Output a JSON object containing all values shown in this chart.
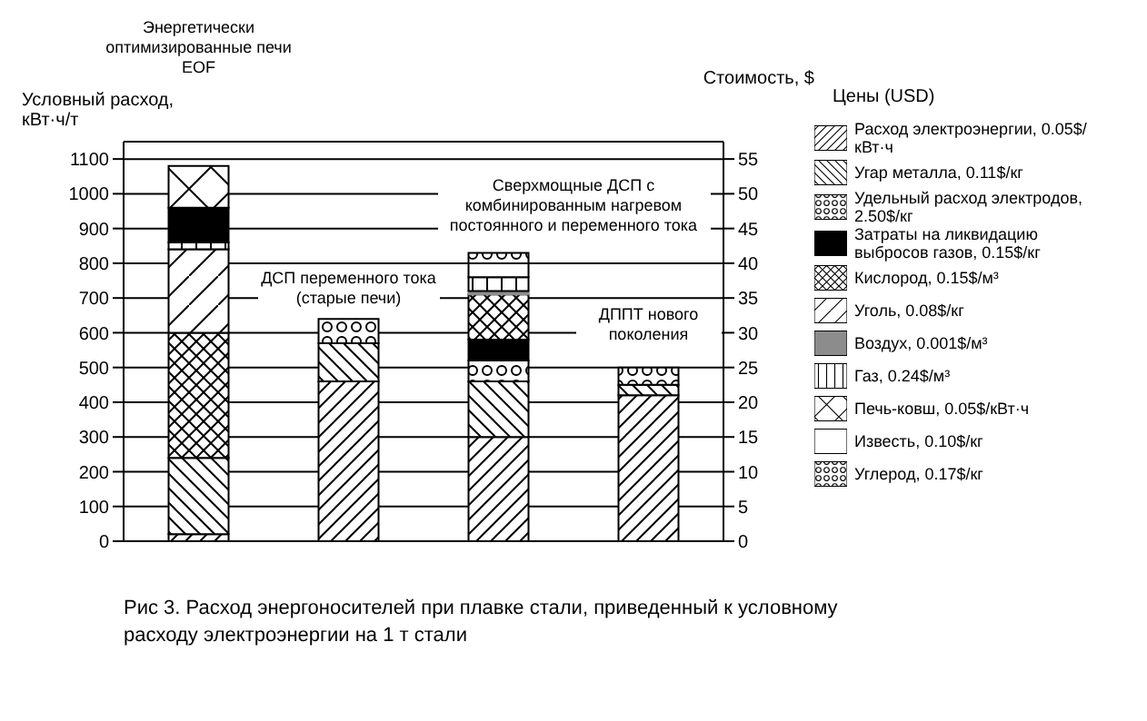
{
  "chart_data": {
    "type": "bar",
    "stacked": true,
    "ylabel": "Условный расход, кВт·ч/т",
    "y2label": "Стоимость, $",
    "categories": [
      null,
      null,
      null,
      null
    ],
    "series": [
      {
        "name": "Расход электроэнергии, 0.05$/кВт·ч",
        "color": "#000000",
        "values": [
          20,
          460,
          300,
          420
        ]
      },
      {
        "name": "Угар металла, 0.11$/кг",
        "color": "#000000",
        "values": [
          220,
          110,
          160,
          30
        ]
      },
      {
        "name": "Удельный расход электродов, 2.50$/кг",
        "color": "#000000",
        "values": [
          null,
          70,
          60,
          50
        ]
      },
      {
        "name": "Затраты на ликвидацию выбросов газов, 0.15$/кг",
        "color": "#000000",
        "values": [
          null,
          null,
          60,
          null
        ]
      },
      {
        "name": "Кислород, 0.15$/м³",
        "color": "#000000",
        "values": [
          360,
          null,
          130,
          null
        ]
      },
      {
        "name": "Уголь, 0.08$/кг",
        "color": "#000000",
        "values": [
          240,
          null,
          null,
          null
        ]
      },
      {
        "name": "Воздух, 0.001$/м³",
        "color": "#8c8c8c",
        "values": [
          null,
          null,
          10,
          null
        ]
      },
      {
        "name": "Газ, 0.24$/м³",
        "color": "#000000",
        "values": [
          20,
          null,
          40,
          null
        ]
      },
      {
        "color": "#000000",
        "values": [
          100,
          null,
          null,
          null
        ]
      },
      {
        "name": "Печь-ковш, 0.05$/кВт·ч",
        "color": "#000000",
        "values": [
          120,
          null,
          null,
          null
        ]
      },
      {
        "name": "Известь, 0.10$/кг",
        "color": "#000000",
        "values": [
          null,
          null,
          40,
          null
        ]
      },
      {
        "name": "Углерод, 0.17$/кг",
        "color": "#000000",
        "values": [
          null,
          null,
          30,
          null
        ]
      }
    ],
    "ylim": [
      0,
      1150
    ],
    "yticks": [
      0,
      100,
      200,
      300,
      400,
      500,
      600,
      700,
      800,
      900,
      1000,
      1100
    ],
    "y2lim": [
      0,
      57.5
    ],
    "y2ticks": [
      0,
      5,
      10,
      15,
      20,
      25,
      30,
      35,
      40,
      45,
      50,
      55
    ],
    "grid": "y",
    "legend": "right",
    "annotations": [
      "Энергетически оптимизированные печи EOF",
      "ДСП переменного тока (старые печи)",
      "Сверхмощные ДСП с комбинированным нагревом постоянного и переменного тока",
      "ДППТ нового поколения",
      "Цены (USD)",
      "Рис 3. Расход энергоносителей при плавке стали, приведенный к условному расходу электроэнергии на 1 т стали"
    ]
  }
}
